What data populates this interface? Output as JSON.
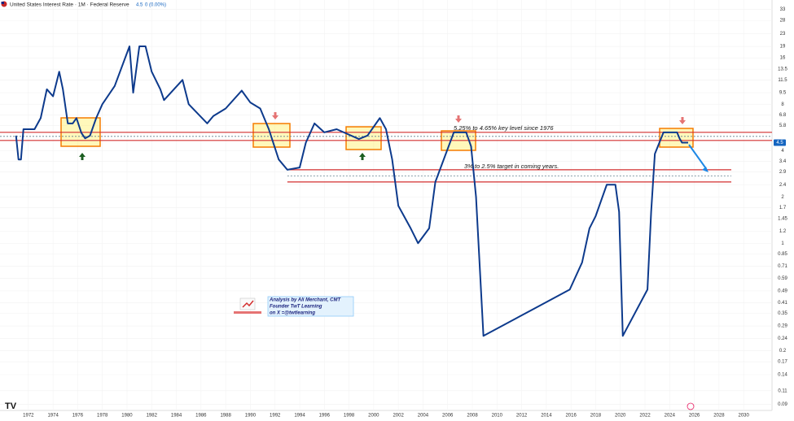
{
  "chart_data": {
    "type": "line",
    "title": "United States Interest Rate · 1M · Federal Reserve",
    "last_value": 4.5,
    "change": "0 (0.00%)",
    "color": "#0d3a8c",
    "log_scale": true,
    "grid": true,
    "x": [
      1971.0,
      1971.2,
      1971.4,
      1971.6,
      1972.5,
      1973.0,
      1973.5,
      1974.0,
      1974.5,
      1974.8,
      1975.2,
      1975.6,
      1975.9,
      1976.3,
      1976.6,
      1977.0,
      1977.5,
      1978.0,
      1979.0,
      1980.2,
      1980.5,
      1981.0,
      1981.5,
      1982.0,
      1982.7,
      1983.0,
      1984.5,
      1985.0,
      1986.5,
      1987.0,
      1988.0,
      1989.3,
      1990.0,
      1990.8,
      1991.5,
      1992.3,
      1993.0,
      1994.0,
      1994.5,
      1995.2,
      1996.0,
      1997.0,
      1998.8,
      1999.5,
      2000.5,
      2001.0,
      2001.5,
      2002.0,
      2003.0,
      2003.6,
      2004.5,
      2005.0,
      2006.5,
      2007.5,
      2007.9,
      2008.3,
      2008.9,
      2015.9,
      2016.9,
      2017.5,
      2018.0,
      2018.9,
      2019.6,
      2019.9,
      2020.2,
      2022.2,
      2022.5,
      2022.8,
      2023.5,
      2024.6,
      2024.8,
      2025.0,
      2025.5
    ],
    "values": [
      5,
      3.5,
      3.5,
      5.5,
      5.5,
      6.5,
      10,
      9,
      13,
      10,
      6,
      6,
      6.5,
      5.2,
      4.8,
      5,
      6.5,
      8,
      10.5,
      19,
      9.5,
      19,
      19,
      13,
      10,
      8.5,
      11.5,
      8,
      6,
      6.7,
      7.5,
      9.8,
      8.2,
      7.5,
      5.5,
      3.5,
      3,
      3.1,
      4.5,
      6,
      5.25,
      5.5,
      4.75,
      5,
      6.5,
      5.5,
      3.5,
      1.75,
      1.25,
      1,
      1.25,
      2.5,
      5.25,
      5.25,
      4.25,
      2,
      0.25,
      0.5,
      0.75,
      1.25,
      1.5,
      2.4,
      2.4,
      1.6,
      0.25,
      0.5,
      1.6,
      3.8,
      5.25,
      5.25,
      4.8,
      4.5,
      4.5
    ],
    "xlim": [
      1969.7,
      2032.3
    ],
    "ylim": [
      0.082,
      38
    ],
    "xticks": [
      1972,
      1974,
      1976,
      1978,
      1980,
      1982,
      1984,
      1986,
      1988,
      1990,
      1992,
      1994,
      1996,
      1998,
      2000,
      2002,
      2004,
      2006,
      2008,
      2010,
      2012,
      2014,
      2016,
      2018,
      2020,
      2022,
      2024,
      2026,
      2028,
      2030
    ],
    "yticks": [
      33,
      28,
      23,
      19,
      16,
      13.5,
      11.5,
      9.5,
      8,
      6.8,
      5.8,
      4,
      3.4,
      2.9,
      2.4,
      2,
      1.7,
      1.45,
      1.2,
      1,
      0.85,
      0.71,
      0.59,
      0.49,
      0.41,
      0.35,
      0.29,
      0.24,
      0.2,
      0.17,
      0.14,
      0.11,
      0.09
    ],
    "levels": [
      {
        "value": 5.25,
        "color": "#d32f2f",
        "x": [
          1969.7,
          2032.3
        ]
      },
      {
        "value": 4.65,
        "color": "#d32f2f",
        "x": [
          1969.7,
          2032.3
        ]
      },
      {
        "value": 3,
        "color": "#d32f2f",
        "x": [
          1993,
          2029
        ]
      },
      {
        "value": 2.5,
        "color": "#d32f2f",
        "x": [
          1993,
          2029
        ]
      }
    ],
    "annotations": [
      "5.25% to 4.65% key level since 1976",
      "3% to 2.5% target in coming years."
    ],
    "credit": [
      "Analysis by Ali Merchant, CMT",
      "Founder TwT Learning",
      "on X =@twtlearning"
    ]
  }
}
